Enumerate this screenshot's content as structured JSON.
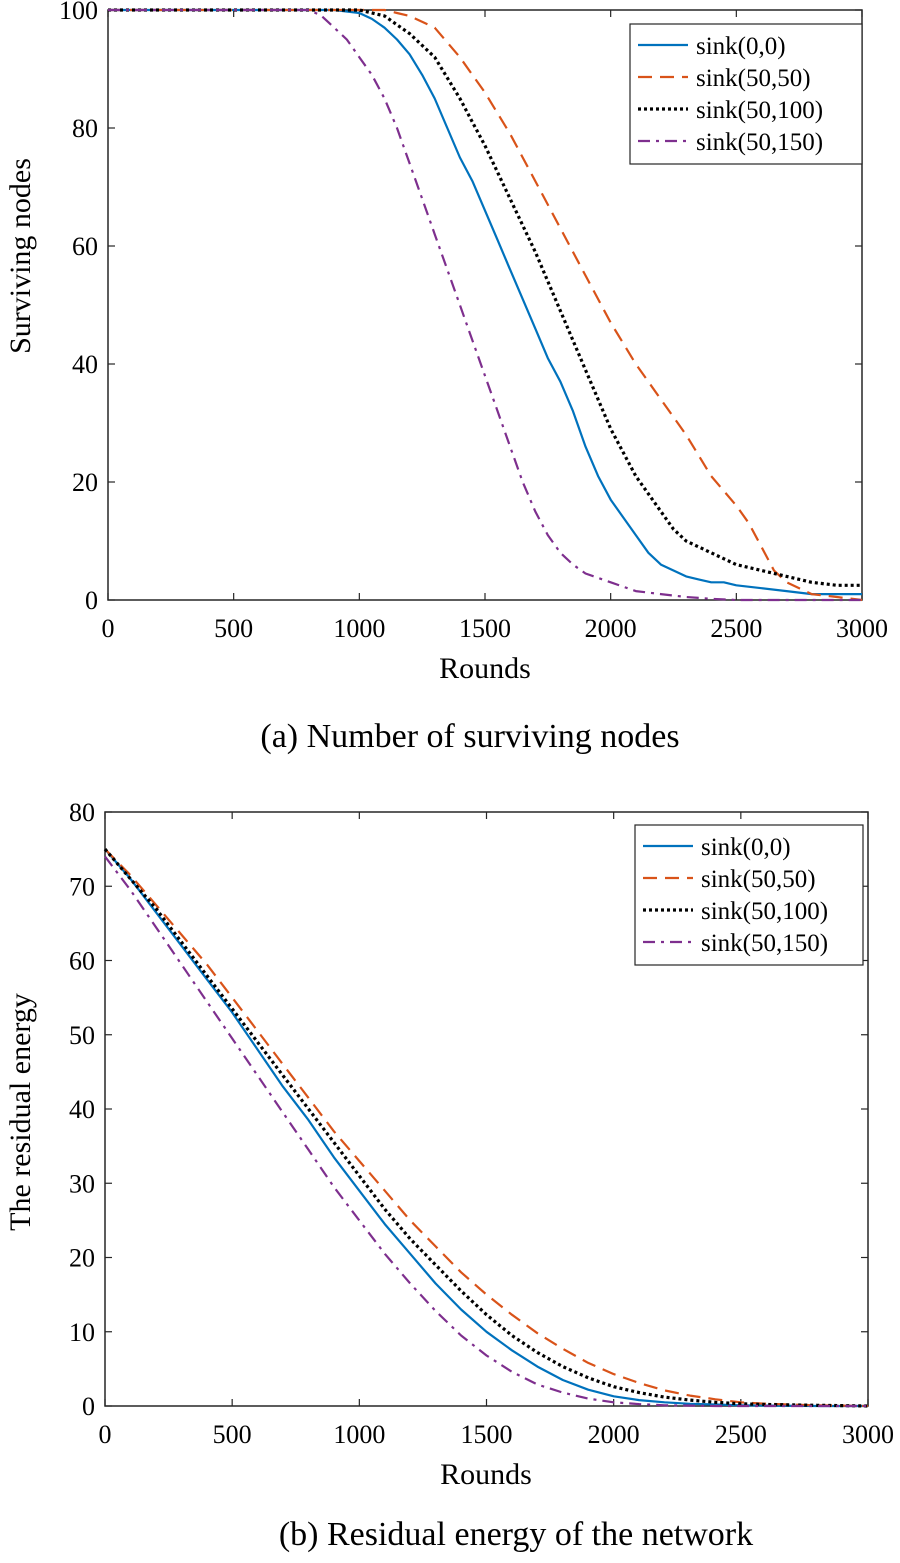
{
  "chart_data": [
    {
      "type": "line",
      "caption": "(a) Number of surviving nodes",
      "xlabel": "Rounds",
      "ylabel": "Surviving nodes",
      "xlim": [
        0,
        3000
      ],
      "ylim": [
        0,
        100
      ],
      "xticks": [
        0,
        500,
        1000,
        1500,
        2000,
        2500,
        3000
      ],
      "yticks": [
        0,
        20,
        40,
        60,
        80,
        100
      ],
      "legend_position": "top-right",
      "grid": false,
      "series": [
        {
          "name": "sink(0,0)",
          "color": "#0072BD",
          "style": "solid",
          "x": [
            0,
            900,
            1000,
            1050,
            1100,
            1150,
            1200,
            1250,
            1300,
            1350,
            1400,
            1450,
            1500,
            1550,
            1600,
            1650,
            1700,
            1750,
            1800,
            1850,
            1900,
            1950,
            2000,
            2050,
            2100,
            2150,
            2200,
            2250,
            2300,
            2350,
            2400,
            2450,
            2500,
            2600,
            2700,
            2800,
            2900,
            3000
          ],
          "y": [
            100,
            100,
            99.5,
            98.5,
            97,
            95,
            92.5,
            89,
            85,
            80,
            75,
            71,
            66,
            61,
            56,
            51,
            46,
            41,
            37,
            32,
            26,
            21,
            17,
            14,
            11,
            8,
            6,
            5,
            4,
            3.5,
            3,
            3,
            2.5,
            2,
            1.5,
            1,
            1,
            1
          ]
        },
        {
          "name": "sink(50,50)",
          "color": "#D95319",
          "style": "dashed",
          "x": [
            0,
            1100,
            1150,
            1200,
            1300,
            1400,
            1450,
            1500,
            1600,
            1700,
            1800,
            1900,
            2000,
            2100,
            2200,
            2300,
            2400,
            2500,
            2550,
            2600,
            2650,
            2700,
            2800,
            2900,
            3000
          ],
          "y": [
            100,
            100,
            99.5,
            99,
            97,
            92,
            89,
            86,
            79,
            71,
            63,
            55,
            47,
            40,
            34,
            28,
            21,
            16,
            13,
            9,
            5,
            3,
            1,
            0.5,
            0
          ]
        },
        {
          "name": "sink(50,100)",
          "color": "#000000",
          "style": "dotted",
          "x": [
            0,
            1000,
            1100,
            1150,
            1200,
            1300,
            1400,
            1450,
            1500,
            1600,
            1700,
            1800,
            1900,
            2000,
            2100,
            2200,
            2250,
            2300,
            2400,
            2500,
            2600,
            2700,
            2800,
            2900,
            3000
          ],
          "y": [
            100,
            100,
            99,
            97.5,
            96,
            92,
            85,
            81,
            77,
            68,
            59,
            49,
            39,
            29,
            21,
            15,
            12,
            10,
            8,
            6,
            5,
            4,
            3,
            2.5,
            2.5
          ]
        },
        {
          "name": "sink(50,150)",
          "color": "#7E2F8E",
          "style": "dashdot",
          "x": [
            0,
            800,
            850,
            900,
            950,
            1000,
            1050,
            1100,
            1150,
            1200,
            1250,
            1300,
            1350,
            1400,
            1450,
            1500,
            1550,
            1600,
            1650,
            1700,
            1750,
            1800,
            1850,
            1900,
            2000,
            2100,
            2200,
            2300,
            2400,
            2500,
            2600,
            3000
          ],
          "y": [
            100,
            100,
            99,
            97,
            95,
            92,
            89,
            85,
            80,
            74,
            68,
            62,
            56,
            50,
            44,
            38,
            32,
            26,
            20,
            15,
            11,
            8,
            6,
            4.5,
            3,
            1.5,
            1,
            0.5,
            0.2,
            0,
            0,
            0
          ]
        }
      ]
    },
    {
      "type": "line",
      "caption": "(b) Residual energy of the network",
      "xlabel": "Rounds",
      "ylabel": "The residual energy",
      "xlim": [
        0,
        3000
      ],
      "ylim": [
        0,
        80
      ],
      "xticks": [
        0,
        500,
        1000,
        1500,
        2000,
        2500,
        3000
      ],
      "yticks": [
        0,
        10,
        20,
        30,
        40,
        50,
        60,
        70,
        80
      ],
      "legend_position": "top-right",
      "grid": false,
      "series": [
        {
          "name": "sink(0,0)",
          "color": "#0072BD",
          "style": "solid",
          "x": [
            0,
            100,
            200,
            300,
            400,
            500,
            600,
            700,
            800,
            900,
            1000,
            1100,
            1200,
            1300,
            1400,
            1500,
            1600,
            1700,
            1800,
            1900,
            2000,
            2100,
            2200,
            2300,
            2400,
            2500,
            2600,
            2800,
            3000
          ],
          "y": [
            75,
            71,
            66.5,
            62,
            57.5,
            53,
            48,
            43,
            38.5,
            33.5,
            29,
            24.5,
            20.5,
            16.5,
            13,
            10,
            7.5,
            5.3,
            3.5,
            2.2,
            1.3,
            0.8,
            0.5,
            0.3,
            0.2,
            0.1,
            0.05,
            0,
            0
          ]
        },
        {
          "name": "sink(50,50)",
          "color": "#D95319",
          "style": "dashed",
          "x": [
            0,
            100,
            200,
            300,
            400,
            500,
            600,
            700,
            800,
            900,
            1000,
            1100,
            1200,
            1300,
            1400,
            1500,
            1600,
            1700,
            1800,
            1900,
            2000,
            2100,
            2200,
            2300,
            2400,
            2500,
            2600,
            2800,
            3000
          ],
          "y": [
            75,
            71.5,
            67.5,
            63.5,
            59.5,
            55,
            50.5,
            46,
            41.5,
            37,
            33,
            29,
            25,
            21.5,
            18,
            15,
            12.3,
            9.8,
            7.7,
            5.8,
            4.3,
            3.1,
            2.1,
            1.4,
            0.9,
            0.5,
            0.3,
            0.1,
            0
          ]
        },
        {
          "name": "sink(50,100)",
          "color": "#000000",
          "style": "dotted",
          "x": [
            0,
            100,
            200,
            300,
            400,
            500,
            600,
            700,
            800,
            900,
            1000,
            1100,
            1200,
            1300,
            1400,
            1500,
            1600,
            1700,
            1800,
            1900,
            2000,
            2100,
            2200,
            2300,
            2400,
            2500,
            2600,
            2800,
            3000
          ],
          "y": [
            75,
            71,
            67,
            62.5,
            58,
            53.5,
            49,
            44.5,
            40,
            35.5,
            31,
            26.5,
            22.5,
            19,
            15.5,
            12.3,
            9.5,
            7.2,
            5.3,
            3.8,
            2.6,
            1.8,
            1.2,
            0.8,
            0.5,
            0.3,
            0.2,
            0.1,
            0
          ]
        },
        {
          "name": "sink(50,150)",
          "color": "#7E2F8E",
          "style": "dashdot",
          "x": [
            0,
            100,
            200,
            300,
            400,
            500,
            600,
            700,
            800,
            900,
            1000,
            1100,
            1200,
            1300,
            1400,
            1500,
            1600,
            1700,
            1800,
            1900,
            2000,
            2100,
            2200,
            2300,
            2400,
            2500,
            3000
          ],
          "y": [
            74,
            69.5,
            64.5,
            59.5,
            54.5,
            49.5,
            44.5,
            39.5,
            34.5,
            29.5,
            25,
            20.5,
            16.5,
            12.8,
            9.5,
            6.8,
            4.6,
            2.9,
            1.8,
            1,
            0.5,
            0.25,
            0.1,
            0.05,
            0,
            0,
            0
          ]
        }
      ]
    }
  ]
}
